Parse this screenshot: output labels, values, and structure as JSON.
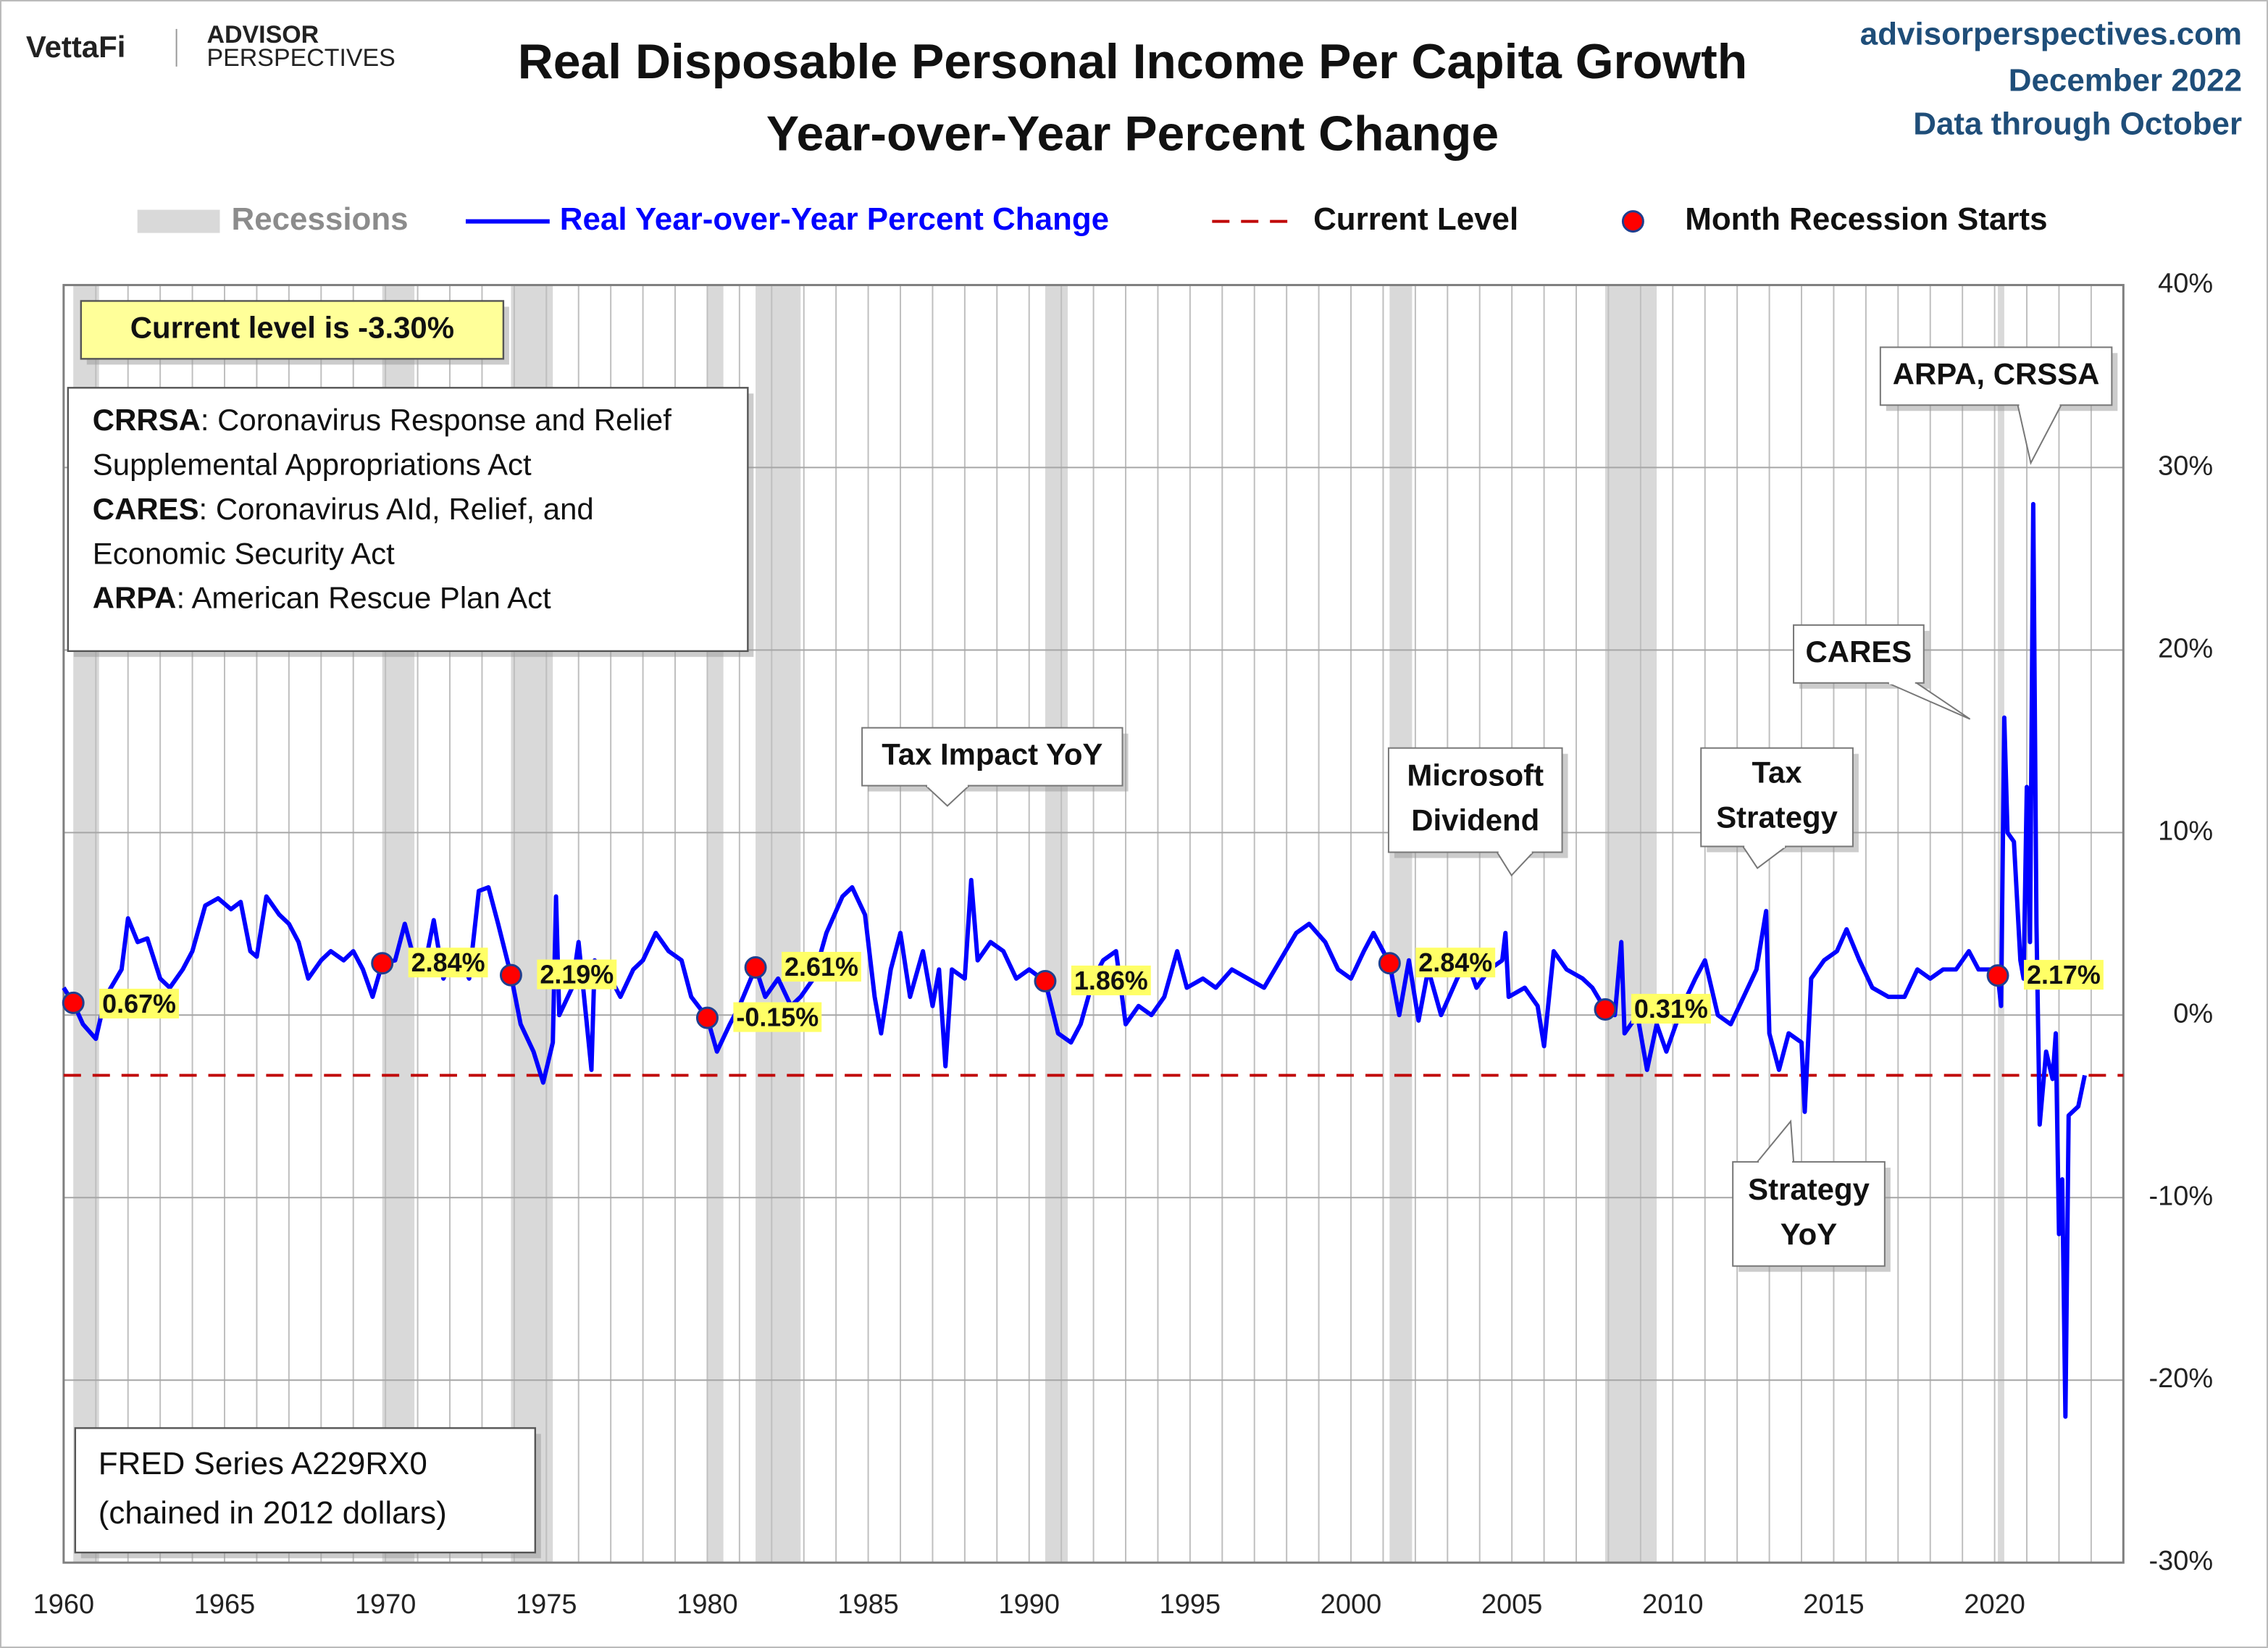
{
  "header": {
    "brand": "VettaFi",
    "brand_sub1": "ADVISOR",
    "brand_sub2": "PERSPECTIVES",
    "site": "advisorperspectives.com",
    "date": "December 2022",
    "data_through": "Data through October"
  },
  "chart_data": {
    "type": "line",
    "title": "Real Disposable Personal Income Per Capita Growth",
    "subtitle": "Year-over-Year Percent Change",
    "xlim": [
      1960,
      2024
    ],
    "xticks": [
      1960,
      1965,
      1970,
      1975,
      1980,
      1985,
      1990,
      1995,
      2000,
      2005,
      2010,
      2015,
      2020
    ],
    "xgrid": [
      1960,
      1961,
      1962,
      1963,
      1964,
      1965,
      1966,
      1967,
      1968,
      1969,
      1970,
      1971,
      1972,
      1973,
      1974,
      1975,
      1976,
      1977,
      1978,
      1979,
      1980,
      1981,
      1982,
      1983,
      1984,
      1985,
      1986,
      1987,
      1988,
      1989,
      1990,
      1991,
      1992,
      1993,
      1994,
      1995,
      1996,
      1997,
      1998,
      1999,
      2000,
      2001,
      2002,
      2003,
      2004,
      2005,
      2006,
      2007,
      2008,
      2009,
      2010,
      2011,
      2012,
      2013,
      2014,
      2015,
      2016,
      2017,
      2018,
      2019,
      2020,
      2021,
      2022,
      2023,
      2024
    ],
    "ylim": [
      -30,
      40
    ],
    "yticks": [
      {
        "value": -30,
        "label": "-30%"
      },
      {
        "value": -20,
        "label": "-20%"
      },
      {
        "value": -10,
        "label": "-10%"
      },
      {
        "value": 0,
        "label": "0%"
      },
      {
        "value": 10,
        "label": "10%"
      },
      {
        "value": 20,
        "label": "20%"
      },
      {
        "value": 30,
        "label": "30%"
      },
      {
        "value": 40,
        "label": "40%"
      }
    ],
    "grid": true,
    "x": [
      1960.0,
      1960.3,
      1960.6,
      1961.0,
      1961.3,
      1961.8,
      1962.0,
      1962.3,
      1962.6,
      1963.0,
      1963.3,
      1963.7,
      1964.0,
      1964.4,
      1964.8,
      1965.2,
      1965.5,
      1965.8,
      1966.0,
      1966.3,
      1966.7,
      1967.0,
      1967.3,
      1967.6,
      1968.0,
      1968.3,
      1968.7,
      1969.0,
      1969.3,
      1969.6,
      1969.9,
      1970.3,
      1970.6,
      1970.9,
      1971.2,
      1971.5,
      1971.8,
      1972.2,
      1972.6,
      1972.9,
      1973.2,
      1973.5,
      1973.9,
      1974.2,
      1974.6,
      1974.9,
      1975.2,
      1975.3,
      1975.4,
      1975.8,
      1976.0,
      1976.2,
      1976.4,
      1976.5,
      1977.0,
      1977.3,
      1977.7,
      1978.0,
      1978.4,
      1978.8,
      1979.2,
      1979.5,
      1980.0,
      1980.3,
      1980.7,
      1981.0,
      1981.5,
      1981.8,
      1982.2,
      1982.6,
      1982.9,
      1983.3,
      1983.7,
      1984.2,
      1984.5,
      1984.9,
      1985.2,
      1985.4,
      1985.7,
      1986.0,
      1986.3,
      1986.7,
      1987.0,
      1987.2,
      1987.4,
      1987.6,
      1988.0,
      1988.2,
      1988.4,
      1988.8,
      1989.2,
      1989.6,
      1990.0,
      1990.5,
      1990.9,
      1991.3,
      1991.6,
      1992.0,
      1992.3,
      1992.7,
      1993.0,
      1993.4,
      1993.8,
      1994.2,
      1994.6,
      1994.9,
      1995.4,
      1995.8,
      1996.3,
      1996.8,
      1997.3,
      1997.8,
      1998.3,
      1998.7,
      1999.2,
      1999.6,
      2000.0,
      2000.4,
      2000.7,
      2001.2,
      2001.5,
      2001.8,
      2002.1,
      2002.4,
      2002.8,
      2003.3,
      2003.6,
      2003.9,
      2004.3,
      2004.7,
      2004.8,
      2004.9,
      2005.4,
      2005.8,
      2006.0,
      2006.3,
      2006.7,
      2007.2,
      2007.5,
      2007.9,
      2008.2,
      2008.4,
      2008.5,
      2008.9,
      2009.2,
      2009.5,
      2009.8,
      2010.3,
      2010.7,
      2011.0,
      2011.4,
      2011.8,
      2012.2,
      2012.6,
      2012.9,
      2013.0,
      2013.3,
      2013.6,
      2014.0,
      2014.1,
      2014.3,
      2014.7,
      2015.1,
      2015.4,
      2015.8,
      2016.2,
      2016.7,
      2017.2,
      2017.6,
      2018.0,
      2018.4,
      2018.8,
      2019.2,
      2019.5,
      2019.9,
      2020.1,
      2020.2,
      2020.3,
      2020.4,
      2020.6,
      2020.8,
      2020.9,
      2021.0,
      2021.1,
      2021.2,
      2021.3,
      2021.4,
      2021.6,
      2021.8,
      2021.9,
      2022.0,
      2022.1,
      2022.2,
      2022.3,
      2022.6,
      2022.8
    ],
    "series": [
      {
        "name": "Real Year-over-Year Percent Change",
        "color": "#0000ff",
        "values": [
          1.5,
          0.67,
          -0.5,
          -1.3,
          1.0,
          2.5,
          5.3,
          4.0,
          4.2,
          2.0,
          1.5,
          2.5,
          3.5,
          6.0,
          6.4,
          5.8,
          6.2,
          3.5,
          3.2,
          6.5,
          5.5,
          5.0,
          4.0,
          2.0,
          3.0,
          3.5,
          3.0,
          3.5,
          2.5,
          1.0,
          2.84,
          3.0,
          5.0,
          3.0,
          2.5,
          5.2,
          2.0,
          3.5,
          2.0,
          6.8,
          7.0,
          5.0,
          2.19,
          -0.5,
          -2.0,
          -3.7,
          -1.5,
          6.5,
          0.0,
          1.5,
          4.0,
          0.5,
          -3.0,
          3.0,
          2.0,
          1.0,
          2.5,
          3.0,
          4.5,
          3.5,
          3.0,
          1.0,
          -0.15,
          -2.0,
          -0.5,
          0.5,
          2.61,
          1.0,
          2.0,
          0.5,
          1.0,
          2.0,
          4.5,
          6.5,
          7.0,
          5.5,
          1.0,
          -1.0,
          2.5,
          4.5,
          1.0,
          3.5,
          0.5,
          2.5,
          -2.8,
          2.5,
          2.0,
          7.4,
          3.0,
          4.0,
          3.5,
          2.0,
          2.5,
          1.86,
          -1.0,
          -1.5,
          -0.5,
          2.0,
          3.0,
          3.5,
          -0.5,
          0.5,
          0.0,
          1.0,
          3.5,
          1.5,
          2.0,
          1.5,
          2.5,
          2.0,
          1.5,
          3.0,
          4.5,
          5.0,
          4.0,
          2.5,
          2.0,
          3.5,
          4.5,
          2.84,
          0.0,
          3.0,
          -0.3,
          2.5,
          0.0,
          2.0,
          3.0,
          1.5,
          2.5,
          3.0,
          4.5,
          1.0,
          1.5,
          0.5,
          -1.7,
          3.5,
          2.5,
          2.0,
          1.5,
          0.31,
          0.0,
          4.0,
          -1.0,
          0.0,
          -3.0,
          -0.5,
          -2.0,
          0.5,
          2.0,
          3.0,
          0.0,
          -0.5,
          1.0,
          2.5,
          5.7,
          -1.0,
          -3.0,
          -1.0,
          -1.5,
          -5.3,
          2.0,
          3.0,
          3.5,
          4.7,
          3.0,
          1.5,
          1.0,
          1.0,
          2.5,
          2.0,
          2.5,
          2.5,
          3.5,
          2.5,
          2.5,
          2.17,
          0.5,
          16.3,
          10.0,
          9.5,
          3.0,
          2.0,
          12.5,
          4.0,
          28.0,
          5.0,
          -6.0,
          -2.0,
          -3.5,
          -1.0,
          -12.0,
          -9.0,
          -22.0,
          -5.5,
          -5.0,
          -3.3
        ]
      }
    ],
    "recessions": {
      "name": "Recessions",
      "color": "#d9d9d9",
      "spans": [
        [
          1960.3,
          1961.1
        ],
        [
          1969.9,
          1970.9
        ],
        [
          1973.9,
          1975.2
        ],
        [
          1980.0,
          1980.5
        ],
        [
          1981.5,
          1982.9
        ],
        [
          1990.5,
          1991.2
        ],
        [
          2001.2,
          2001.9
        ],
        [
          2007.9,
          2009.5
        ],
        [
          2020.1,
          2020.3
        ]
      ]
    },
    "current_level": {
      "name": "Current Level",
      "color": "#c00000",
      "value": -3.3
    },
    "recession_starts": {
      "name": "Month Recession Starts",
      "color": "#ff0000",
      "x": [
        1960.3,
        1969.9,
        1973.9,
        1980.0,
        1981.5,
        1990.5,
        2001.2,
        2007.9,
        2020.1
      ],
      "values": [
        0.67,
        2.84,
        2.19,
        -0.15,
        2.61,
        1.86,
        2.84,
        0.31,
        2.17
      ],
      "value_labels": [
        "0.67%",
        "2.84%",
        "2.19%",
        "-0.15%",
        "2.61%",
        "1.86%",
        "2.84%",
        "0.31%",
        "2.17%"
      ]
    },
    "current_level_note": "Current level is -3.30%",
    "definitions": [
      {
        "term": "CRRSA",
        "text": [
          ": Coronavirus Response and Relief",
          "Supplemental Appropriations Act"
        ]
      },
      {
        "term": "CARES",
        "text": [
          ": Coronavirus AId, Relief, and",
          "Economic Security Act"
        ]
      },
      {
        "term": "ARPA",
        "text": [
          ": American Rescue Plan Act"
        ]
      }
    ],
    "source": [
      "FRED Series A229RX0",
      "(chained in 2012 dollars)"
    ],
    "annotations": [
      {
        "lines": [
          "Tax Impact YoY"
        ]
      },
      {
        "lines": [
          "Microsoft",
          "Dividend"
        ]
      },
      {
        "lines": [
          "Tax",
          "Strategy"
        ]
      },
      {
        "lines": [
          "Strategy",
          "YoY"
        ]
      },
      {
        "lines": [
          "CARES"
        ]
      },
      {
        "lines": [
          "ARPA, CRSSA"
        ]
      }
    ]
  }
}
